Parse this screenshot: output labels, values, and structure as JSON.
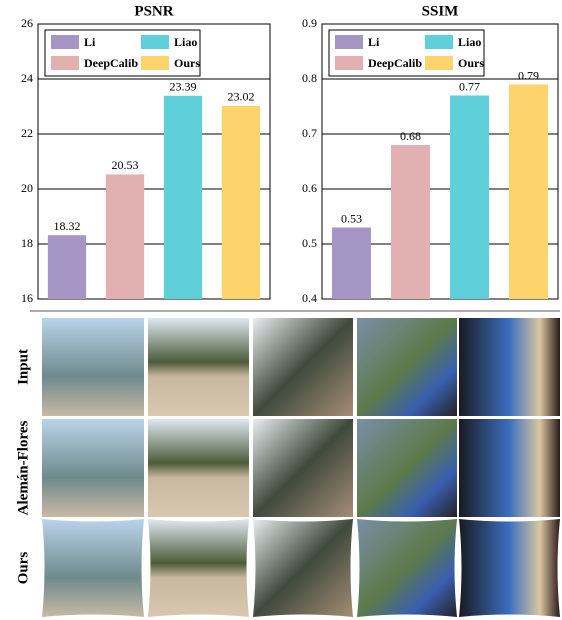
{
  "chart_data": [
    {
      "type": "bar",
      "title": "PSNR",
      "categories": [
        "Li",
        "DeepCalib",
        "Liao",
        "Ours"
      ],
      "colors": [
        "#a596c6",
        "#e2b0b0",
        "#5fcfda",
        "#fdd46c"
      ],
      "values": [
        18.32,
        20.53,
        23.39,
        23.02
      ],
      "ylim": [
        16,
        26
      ],
      "yticks": [
        16,
        18,
        20,
        22,
        24,
        26
      ],
      "grid": true,
      "legend": "upper left"
    },
    {
      "type": "bar",
      "title": "SSIM",
      "categories": [
        "Li",
        "DeepCalib",
        "Liao",
        "Ours"
      ],
      "colors": [
        "#a596c6",
        "#e2b0b0",
        "#5fcfda",
        "#fdd46c"
      ],
      "values": [
        0.53,
        0.68,
        0.77,
        0.79
      ],
      "ylim": [
        0.4,
        0.9
      ],
      "yticks": [
        0.4,
        0.5,
        0.6,
        0.7,
        0.8,
        0.9
      ],
      "grid": true,
      "legend": "upper left"
    }
  ],
  "image_grid": {
    "row_labels": [
      "Input",
      "Alemán-Flores",
      "Ours"
    ]
  }
}
